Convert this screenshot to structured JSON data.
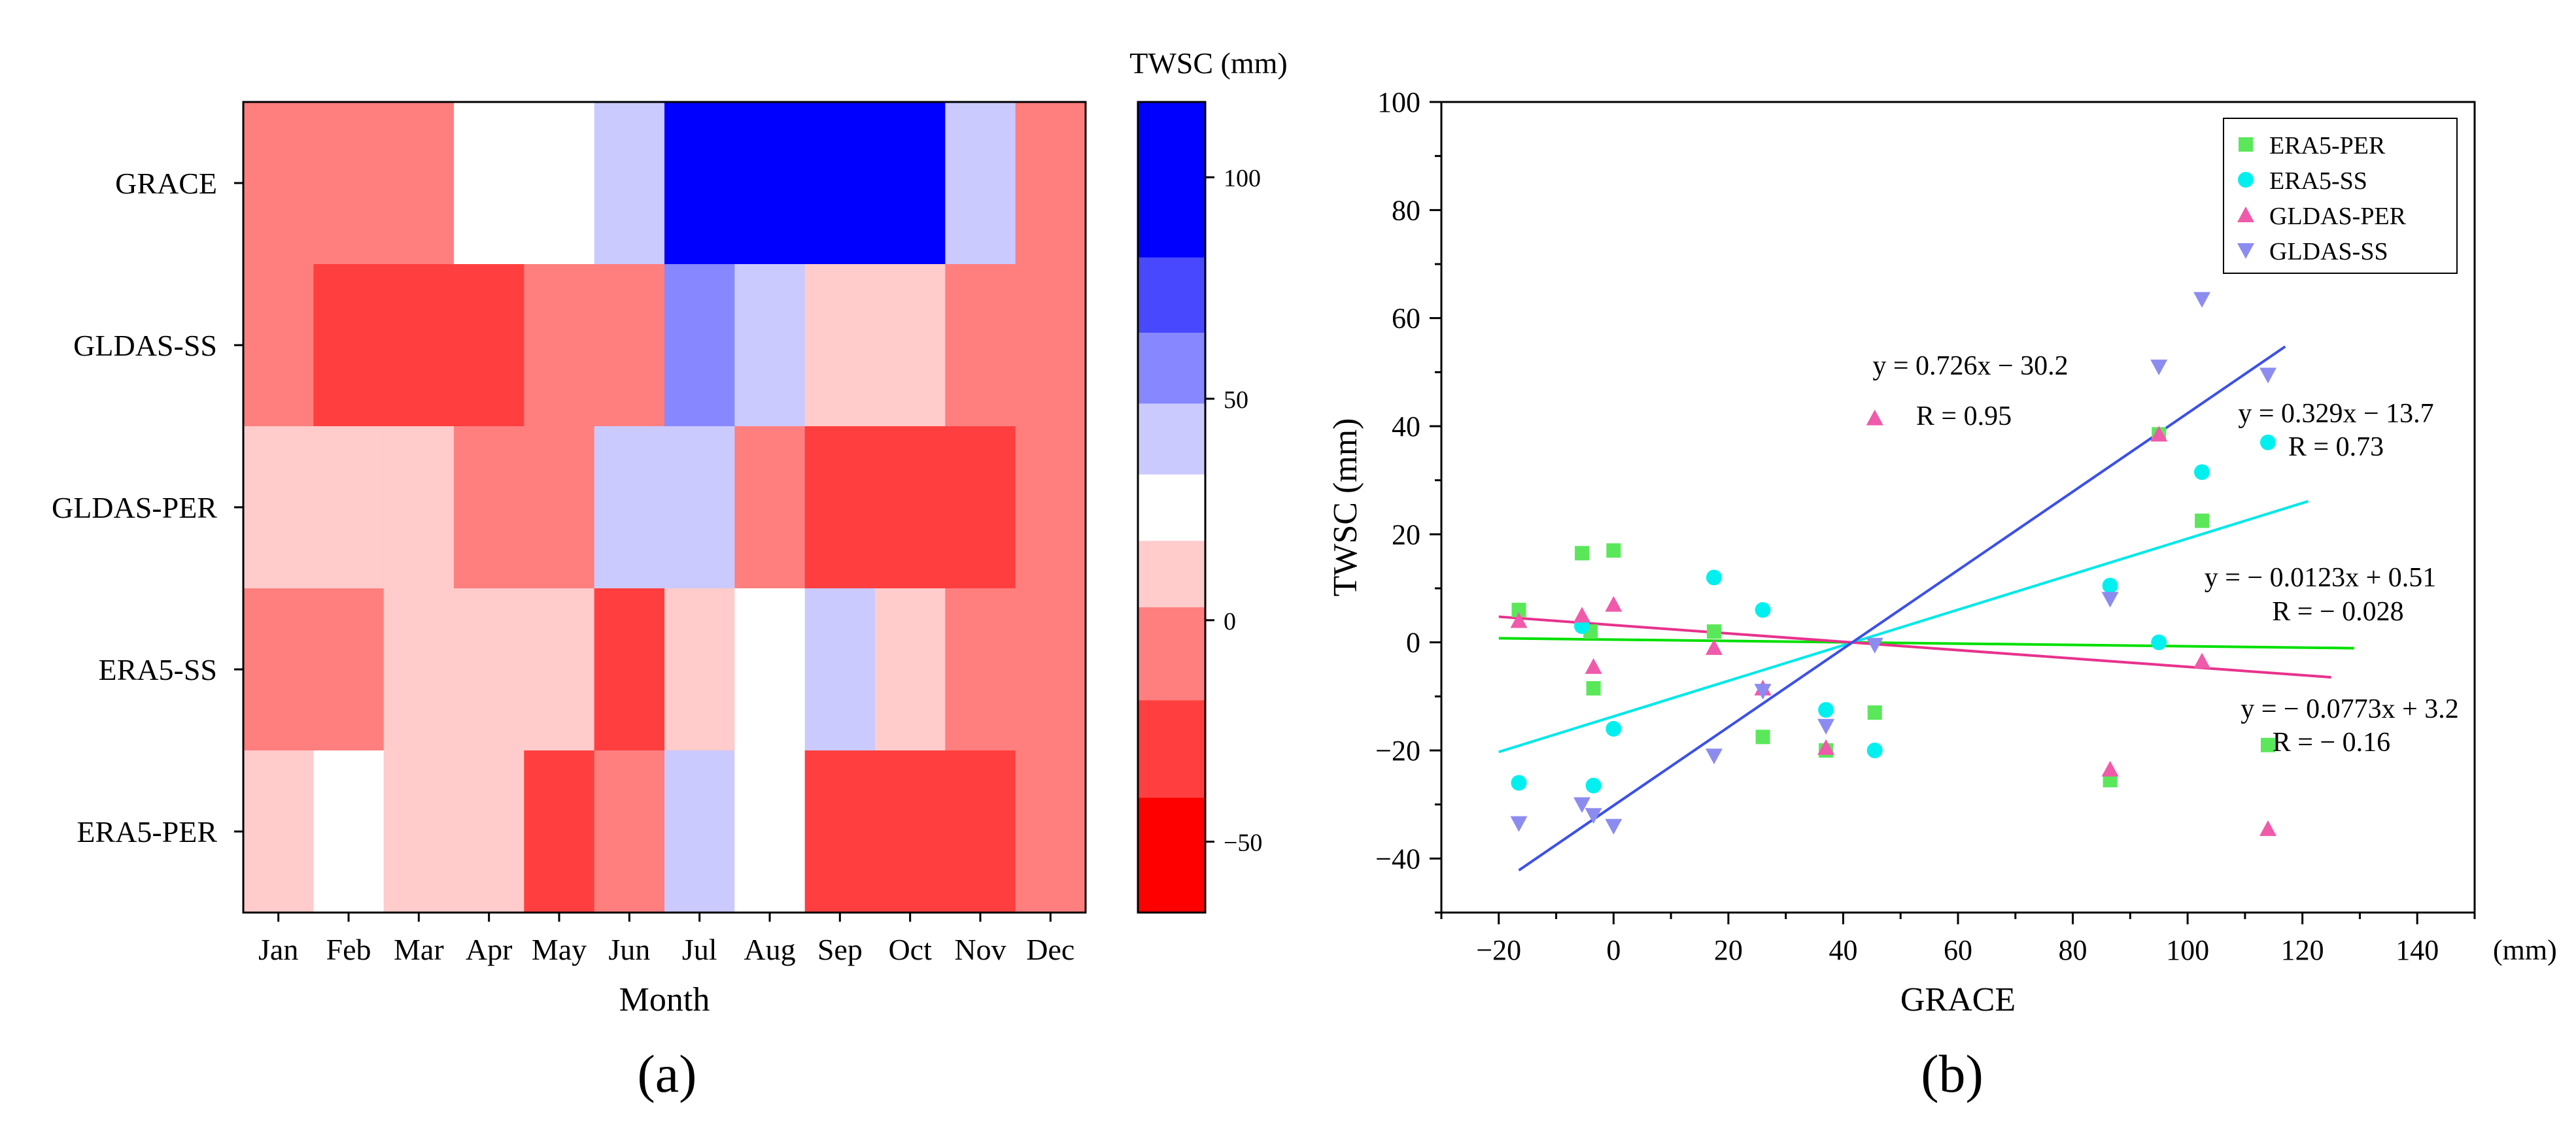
{
  "panel_labels": {
    "a": "(a)",
    "b": "(b)"
  },
  "colors": {
    "positive": "#0000ff",
    "negative": "#ff0000",
    "neutral": "#ffffff"
  },
  "chart_data": [
    {
      "type": "heatmap",
      "title": "",
      "xlabel": "Month",
      "ylabel": "",
      "categories": [
        "Jan",
        "Feb",
        "Mar",
        "Apr",
        "May",
        "Jun",
        "Jul",
        "Aug",
        "Sep",
        "Oct",
        "Nov",
        "Dec"
      ],
      "rows": [
        "GRACE",
        "GLDAS-SS",
        "GLDAS-PER",
        "ERA5-SS",
        "ERA5-PER"
      ],
      "values": [
        [
          0,
          0,
          0,
          26,
          26,
          42,
          90,
          90,
          90,
          90,
          42,
          0
        ],
        [
          -12,
          -35,
          -22,
          -22,
          -6,
          -6,
          58,
          42,
          10,
          10,
          -6,
          -12
        ],
        [
          10,
          10,
          10,
          -6,
          -6,
          42,
          42,
          -6,
          -35,
          -22,
          -22,
          -6
        ],
        [
          -12,
          -6,
          10,
          10,
          10,
          -22,
          10,
          26,
          42,
          10,
          -6,
          -12
        ],
        [
          10,
          26,
          10,
          10,
          -22,
          -6,
          42,
          26,
          -22,
          -22,
          -22,
          -6
        ]
      ],
      "colorbar": {
        "title": "TWSC (mm)",
        "levels": [
          -66,
          -40,
          -18,
          3,
          18,
          33,
          49,
          65,
          82,
          117
        ],
        "colors": [
          "#ff0000",
          "#ff3f3f",
          "#ff7f7f",
          "#ffcbcb",
          "#ffffff",
          "#cacaff",
          "#8787ff",
          "#4848ff",
          "#0000ff"
        ],
        "ticks": [
          -50,
          0,
          50,
          100
        ],
        "tick_labels": [
          "−50",
          "0",
          "50",
          "100"
        ],
        "range": [
          -66,
          117
        ]
      }
    },
    {
      "type": "scatter",
      "title": "",
      "xlabel": "GRACE",
      "x_unit": "(mm)",
      "ylabel": "TWSC (mm)",
      "xlim": [
        -30,
        150
      ],
      "ylim": [
        -50,
        100
      ],
      "xticks": [
        -20,
        0,
        20,
        40,
        60,
        80,
        100,
        120,
        140
      ],
      "xtick_labels": [
        "−20",
        "0",
        "20",
        "40",
        "60",
        "80",
        "100",
        "120",
        "140"
      ],
      "yticks": [
        -40,
        -20,
        0,
        20,
        40,
        60,
        80,
        100
      ],
      "ytick_labels": [
        "−40",
        "−20",
        "0",
        "20",
        "40",
        "60",
        "80",
        "100"
      ],
      "legend_position": "top-right",
      "series": [
        {
          "name": "ERA5-PER",
          "marker": "square",
          "color": "#5ae85a",
          "x": [
            -16.5,
            -5.5,
            -4,
            -3.5,
            0,
            17.5,
            26,
            37,
            45.5,
            86.5,
            95,
            102.5,
            114
          ],
          "y": [
            6,
            16.5,
            2,
            -8.5,
            17,
            2,
            -17.5,
            -20,
            -13,
            -25.5,
            38.5,
            22.5,
            -19
          ],
          "fit": {
            "slope": 0.0123,
            "intercept": 0.51,
            "sign": "-",
            "x_range": [
              -20,
              129
            ],
            "color": "#00e000"
          },
          "equation": "y = − 0.0123x + 0.51",
          "r_label": "R = − 0.028"
        },
        {
          "name": "ERA5-SS",
          "marker": "circle",
          "color": "#00f0f0",
          "x": [
            -16.5,
            -5.5,
            -3.5,
            0,
            17.5,
            26,
            37,
            45.5,
            86.5,
            95,
            102.5,
            114
          ],
          "y": [
            -26,
            3,
            -26.5,
            -16,
            12,
            6,
            -12.5,
            -20,
            10.5,
            0,
            31.5,
            37
          ],
          "fit": {
            "slope": 0.329,
            "intercept": -13.7,
            "sign": "+",
            "x_range": [
              -20,
              121
            ],
            "color": "#00e8e8"
          },
          "equation": "y = 0.329x − 13.7",
          "r_label": "R = 0.73"
        },
        {
          "name": "GLDAS-PER",
          "marker": "triangle-up",
          "color": "#f05aaa",
          "x": [
            -16.5,
            -5.5,
            -3.5,
            0,
            17.5,
            26,
            37,
            45.5,
            86.5,
            95,
            102.5,
            114
          ],
          "y": [
            4,
            5,
            -4.5,
            7,
            -1,
            -8.5,
            -19.5,
            41.5,
            -23.5,
            38.5,
            -3.5,
            -34.5
          ],
          "fit": {
            "slope": 0.0773,
            "intercept": 3.2,
            "sign": "-",
            "x_range": [
              -20,
              125
            ],
            "color": "#e8328c"
          },
          "equation": "y = − 0.0773x + 3.2",
          "r_label": "R = − 0.16"
        },
        {
          "name": "GLDAS-SS",
          "marker": "triangle-down",
          "color": "#8c8cf0",
          "x": [
            -16.5,
            -5.5,
            -3.5,
            0,
            17.5,
            26,
            37,
            45.5,
            86.5,
            95,
            102.5,
            114
          ],
          "y": [
            -33.5,
            -30,
            -32,
            -34,
            -21,
            -9,
            -15.5,
            -0.5,
            8,
            51,
            63.5,
            49.5
          ],
          "fit": {
            "slope": 0.726,
            "intercept": -30.2,
            "sign": "+",
            "x_range": [
              -16.5,
              117
            ],
            "color": "#3c50e6"
          },
          "equation": "y = 0.726x − 30.2",
          "r_label": "R = 0.95"
        }
      ]
    }
  ]
}
